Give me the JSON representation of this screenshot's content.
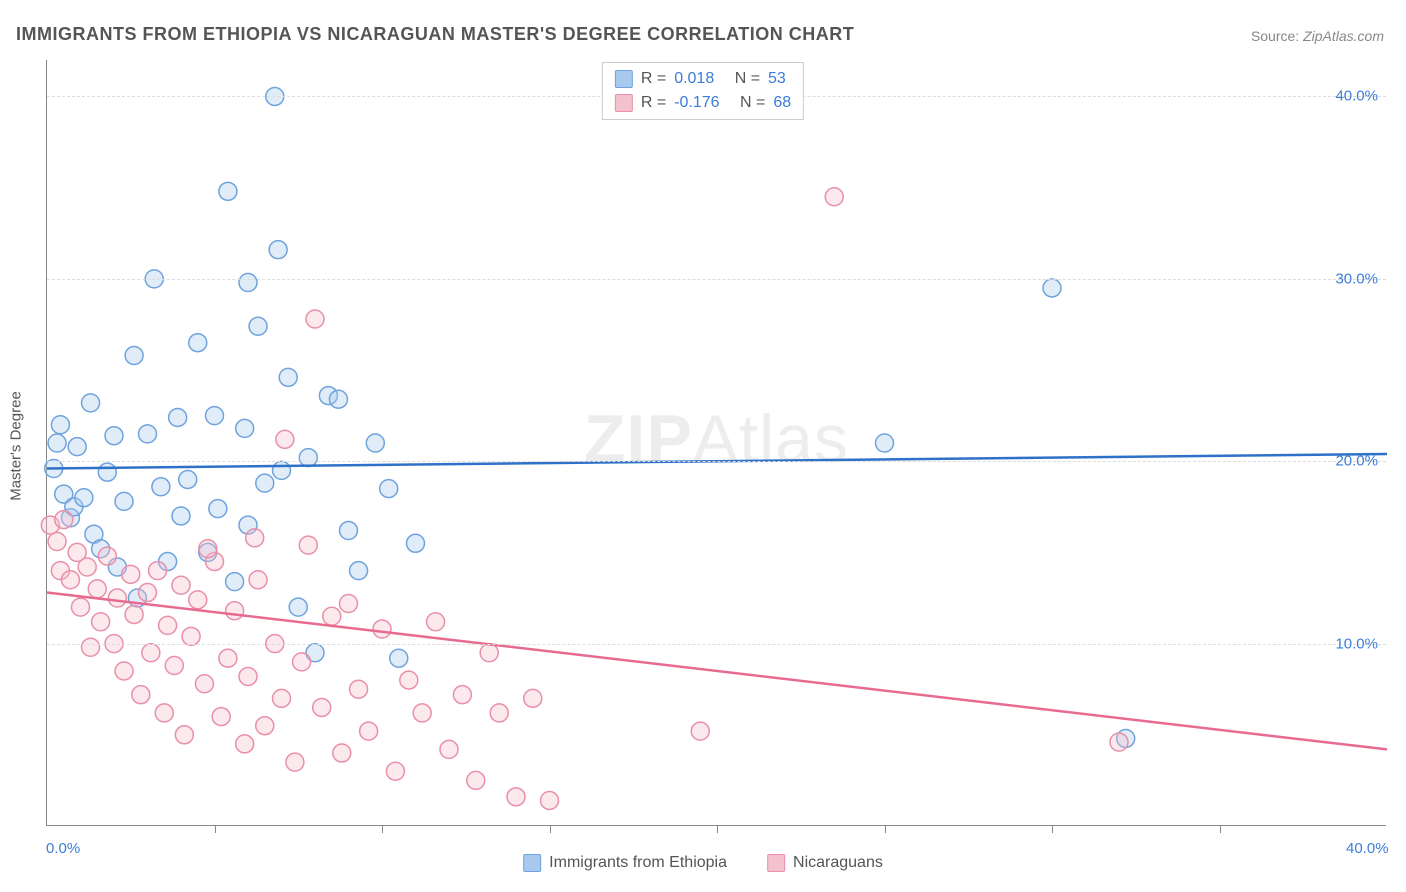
{
  "title": "IMMIGRANTS FROM ETHIOPIA VS NICARAGUAN MASTER'S DEGREE CORRELATION CHART",
  "source_label": "Source:",
  "source_value": "ZipAtlas.com",
  "ylabel": "Master's Degree",
  "watermark_bold": "ZIP",
  "watermark_rest": "Atlas",
  "chart": {
    "type": "scatter",
    "background_color": "#ffffff",
    "grid_color": "#dddddd",
    "axis_color": "#888888",
    "text_color": "#555555",
    "tick_label_color": "#3b7dd8",
    "xlim": [
      0,
      40
    ],
    "ylim": [
      0,
      42
    ],
    "x_tick_labels": [
      {
        "v": 0,
        "t": "0.0%"
      },
      {
        "v": 40,
        "t": "40.0%"
      }
    ],
    "x_minor_ticks": [
      5,
      10,
      15,
      20,
      25,
      30,
      35
    ],
    "y_ticks": [
      {
        "v": 10,
        "t": "10.0%"
      },
      {
        "v": 20,
        "t": "20.0%"
      },
      {
        "v": 30,
        "t": "30.0%"
      },
      {
        "v": 40,
        "t": "40.0%"
      }
    ],
    "marker_radius": 9,
    "marker_fill_opacity": 0.35,
    "marker_stroke_width": 1.5,
    "line_width": 2.5,
    "series": [
      {
        "name": "Immigrants from Ethiopia",
        "color_fill": "#a8c8ed",
        "color_stroke": "#6fa3dd",
        "line_color": "#2e71c9",
        "R": "0.018",
        "N": "53",
        "regression": {
          "y_at_x0": 19.6,
          "y_at_x40": 20.4
        },
        "points": [
          [
            0.2,
            19.6
          ],
          [
            0.3,
            21.0
          ],
          [
            0.4,
            22.0
          ],
          [
            0.5,
            18.2
          ],
          [
            0.7,
            16.9
          ],
          [
            0.8,
            17.5
          ],
          [
            0.9,
            20.8
          ],
          [
            1.1,
            18.0
          ],
          [
            1.3,
            23.2
          ],
          [
            1.4,
            16.0
          ],
          [
            1.6,
            15.2
          ],
          [
            1.8,
            19.4
          ],
          [
            2.0,
            21.4
          ],
          [
            2.1,
            14.2
          ],
          [
            2.3,
            17.8
          ],
          [
            2.6,
            25.8
          ],
          [
            2.7,
            12.5
          ],
          [
            3.0,
            21.5
          ],
          [
            3.2,
            30.0
          ],
          [
            3.4,
            18.6
          ],
          [
            3.6,
            14.5
          ],
          [
            3.9,
            22.4
          ],
          [
            4.2,
            19.0
          ],
          [
            4.5,
            26.5
          ],
          [
            4.8,
            15.0
          ],
          [
            5.1,
            17.4
          ],
          [
            5.4,
            34.8
          ],
          [
            5.6,
            13.4
          ],
          [
            5.9,
            21.8
          ],
          [
            6.0,
            29.8
          ],
          [
            6.3,
            27.4
          ],
          [
            6.5,
            18.8
          ],
          [
            6.8,
            40.0
          ],
          [
            6.9,
            31.6
          ],
          [
            7.2,
            24.6
          ],
          [
            7.5,
            12.0
          ],
          [
            7.8,
            20.2
          ],
          [
            8.0,
            9.5
          ],
          [
            8.4,
            23.6
          ],
          [
            8.7,
            23.4
          ],
          [
            9.0,
            16.2
          ],
          [
            9.3,
            14.0
          ],
          [
            9.8,
            21.0
          ],
          [
            10.2,
            18.5
          ],
          [
            10.5,
            9.2
          ],
          [
            11.0,
            15.5
          ],
          [
            25.0,
            21.0
          ],
          [
            30.0,
            29.5
          ],
          [
            32.2,
            4.8
          ],
          [
            6.0,
            16.5
          ],
          [
            7.0,
            19.5
          ],
          [
            5.0,
            22.5
          ],
          [
            4.0,
            17.0
          ]
        ]
      },
      {
        "name": "Nicaraguans",
        "color_fill": "#f4c1cf",
        "color_stroke": "#e98fa9",
        "line_color": "#e86b8f",
        "R": "-0.176",
        "N": "68",
        "regression": {
          "y_at_x0": 12.8,
          "y_at_x40": 4.2
        },
        "points": [
          [
            0.1,
            16.5
          ],
          [
            0.3,
            15.6
          ],
          [
            0.4,
            14.0
          ],
          [
            0.5,
            16.8
          ],
          [
            0.7,
            13.5
          ],
          [
            0.9,
            15.0
          ],
          [
            1.0,
            12.0
          ],
          [
            1.2,
            14.2
          ],
          [
            1.3,
            9.8
          ],
          [
            1.5,
            13.0
          ],
          [
            1.6,
            11.2
          ],
          [
            1.8,
            14.8
          ],
          [
            2.0,
            10.0
          ],
          [
            2.1,
            12.5
          ],
          [
            2.3,
            8.5
          ],
          [
            2.5,
            13.8
          ],
          [
            2.6,
            11.6
          ],
          [
            2.8,
            7.2
          ],
          [
            3.0,
            12.8
          ],
          [
            3.1,
            9.5
          ],
          [
            3.3,
            14.0
          ],
          [
            3.5,
            6.2
          ],
          [
            3.6,
            11.0
          ],
          [
            3.8,
            8.8
          ],
          [
            4.0,
            13.2
          ],
          [
            4.1,
            5.0
          ],
          [
            4.3,
            10.4
          ],
          [
            4.5,
            12.4
          ],
          [
            4.7,
            7.8
          ],
          [
            5.0,
            14.5
          ],
          [
            5.2,
            6.0
          ],
          [
            5.4,
            9.2
          ],
          [
            5.6,
            11.8
          ],
          [
            5.9,
            4.5
          ],
          [
            6.0,
            8.2
          ],
          [
            6.3,
            13.5
          ],
          [
            6.5,
            5.5
          ],
          [
            6.8,
            10.0
          ],
          [
            7.0,
            7.0
          ],
          [
            7.1,
            21.2
          ],
          [
            7.4,
            3.5
          ],
          [
            7.6,
            9.0
          ],
          [
            7.8,
            15.4
          ],
          [
            8.0,
            27.8
          ],
          [
            8.2,
            6.5
          ],
          [
            8.5,
            11.5
          ],
          [
            8.8,
            4.0
          ],
          [
            9.0,
            12.2
          ],
          [
            9.3,
            7.5
          ],
          [
            9.6,
            5.2
          ],
          [
            10.0,
            10.8
          ],
          [
            10.4,
            3.0
          ],
          [
            10.8,
            8.0
          ],
          [
            11.2,
            6.2
          ],
          [
            11.6,
            11.2
          ],
          [
            12.0,
            4.2
          ],
          [
            12.4,
            7.2
          ],
          [
            12.8,
            2.5
          ],
          [
            13.2,
            9.5
          ],
          [
            13.5,
            6.2
          ],
          [
            14.0,
            1.6
          ],
          [
            14.5,
            7.0
          ],
          [
            15.0,
            1.4
          ],
          [
            19.5,
            5.2
          ],
          [
            23.5,
            34.5
          ],
          [
            32.0,
            4.6
          ],
          [
            6.2,
            15.8
          ],
          [
            4.8,
            15.2
          ]
        ]
      }
    ]
  },
  "stats_legend": {
    "r_label": "R =",
    "n_label": "N ="
  },
  "bottom_legend_items": [
    "Immigrants from Ethiopia",
    "Nicaraguans"
  ]
}
